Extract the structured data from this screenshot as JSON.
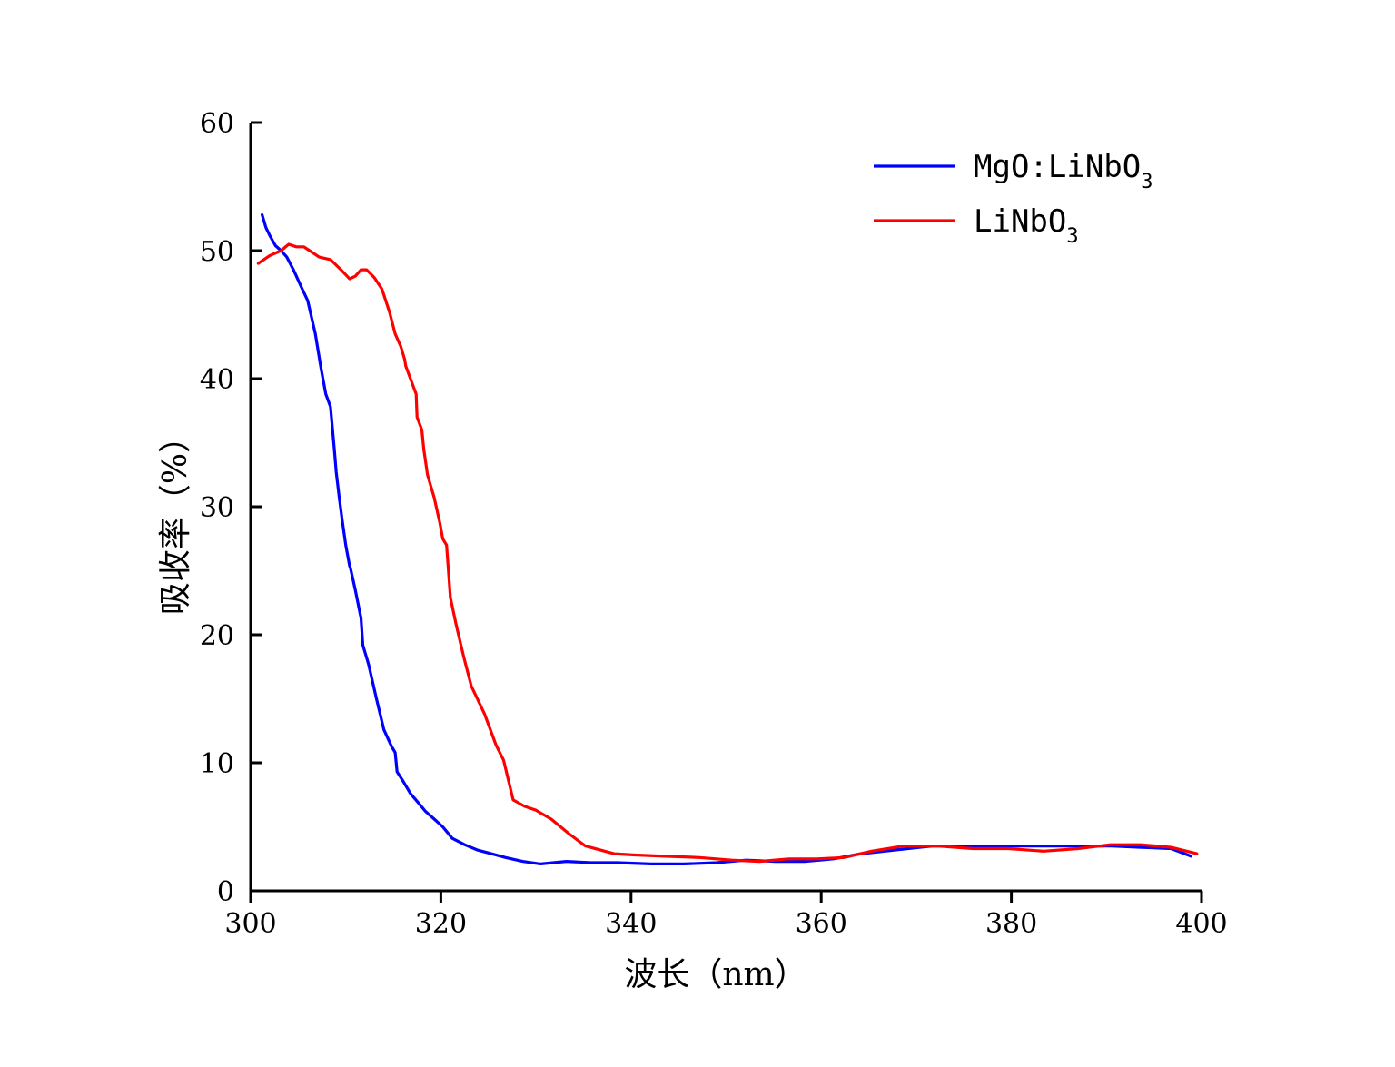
{
  "chart_data": {
    "type": "line",
    "xlabel": "波长（nm）",
    "ylabel": "吸收率（%）",
    "xlim": [
      300,
      400
    ],
    "ylim": [
      0,
      60
    ],
    "xticks": [
      "300",
      "320",
      "340",
      "360",
      "380",
      "400"
    ],
    "yticks": [
      "0",
      "10",
      "20",
      "30",
      "40",
      "50",
      "60"
    ],
    "grid": false,
    "legend_position": "top-right",
    "series": [
      {
        "name": "MgO:LiNbO3",
        "name_main": "MgO:LiNbO",
        "name_sub": "3",
        "color": "#0000ff",
        "x": [
          301.2,
          301.6,
          302.0,
          302.6,
          303.2,
          303.8,
          304.5,
          305.3,
          306.0,
          306.8,
          307.4,
          307.9,
          308.4,
          308.8,
          309.0,
          309.3,
          309.6,
          310.0,
          310.4,
          310.5,
          311.0,
          311.6,
          311.8,
          312.4,
          313.2,
          314.0,
          314.8,
          315.2,
          315.4,
          316.0,
          316.8,
          317.6,
          318.4,
          319.3,
          320.2,
          321.2,
          322.5,
          323.8,
          325.3,
          326.8,
          328.6,
          330.5,
          333.2,
          335.8,
          338.6,
          342.1,
          345.6,
          349.0,
          352.1,
          355.2,
          358.3,
          361.3,
          364.2,
          367.9,
          371.7,
          375.6,
          379.4,
          383.2,
          386.8,
          390.6,
          393.7,
          396.8,
          398.9
        ],
        "y": [
          52.8,
          51.8,
          51.2,
          50.4,
          50.0,
          49.5,
          48.5,
          47.2,
          46.1,
          43.5,
          40.8,
          38.8,
          37.8,
          34.5,
          32.7,
          30.8,
          29.1,
          27.0,
          25.4,
          25.2,
          23.5,
          21.3,
          19.2,
          17.7,
          15.1,
          12.6,
          11.3,
          10.8,
          9.3,
          8.6,
          7.6,
          6.9,
          6.2,
          5.6,
          5.0,
          4.1,
          3.6,
          3.2,
          2.9,
          2.6,
          2.3,
          2.1,
          2.3,
          2.2,
          2.2,
          2.1,
          2.1,
          2.2,
          2.4,
          2.3,
          2.3,
          2.5,
          2.9,
          3.2,
          3.5,
          3.5,
          3.5,
          3.5,
          3.5,
          3.5,
          3.4,
          3.3,
          2.7
        ]
      },
      {
        "name": "LiNbO3",
        "name_main": "LiNbO",
        "name_sub": "3",
        "color": "#ff0000",
        "x": [
          300.8,
          302.0,
          303.2,
          304.0,
          304.8,
          305.6,
          306.2,
          307.2,
          308.4,
          309.5,
          310.4,
          311.0,
          311.6,
          312.2,
          313.0,
          313.8,
          314.6,
          315.2,
          315.8,
          316.2,
          316.3,
          316.8,
          317.4,
          317.5,
          318.0,
          318.2,
          318.6,
          319.3,
          319.9,
          320.2,
          320.6,
          321.0,
          321.6,
          322.4,
          323.2,
          324.6,
          325.8,
          326.6,
          327.6,
          328.8,
          330.0,
          331.6,
          333.4,
          335.2,
          338.2,
          340.4,
          343.6,
          347.2,
          350.6,
          353.5,
          356.6,
          359.5,
          362.4,
          365.3,
          368.7,
          372.3,
          376.0,
          379.7,
          383.4,
          387.0,
          390.4,
          393.6,
          396.8,
          399.5
        ],
        "y": [
          49.0,
          49.6,
          50.0,
          50.5,
          50.3,
          50.3,
          50.0,
          49.5,
          49.3,
          48.5,
          47.8,
          48.0,
          48.5,
          48.5,
          47.9,
          47.0,
          45.2,
          43.5,
          42.5,
          41.5,
          41.0,
          40.0,
          38.8,
          37.0,
          36.0,
          34.5,
          32.5,
          30.7,
          28.7,
          27.5,
          27.0,
          22.9,
          20.8,
          18.3,
          16.0,
          13.8,
          11.4,
          10.2,
          7.1,
          6.6,
          6.3,
          5.6,
          4.5,
          3.5,
          2.9,
          2.8,
          2.7,
          2.6,
          2.4,
          2.3,
          2.5,
          2.5,
          2.6,
          3.1,
          3.5,
          3.5,
          3.3,
          3.3,
          3.1,
          3.3,
          3.6,
          3.6,
          3.4,
          2.9
        ]
      }
    ]
  }
}
